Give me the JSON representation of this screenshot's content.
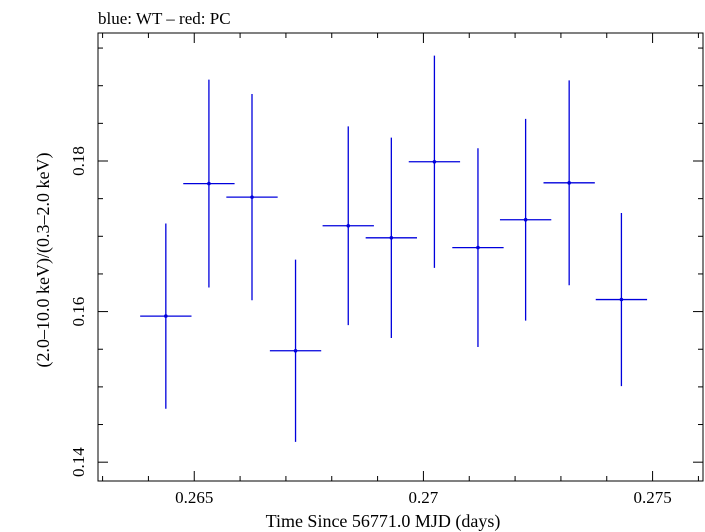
{
  "chart_data": {
    "type": "scatter",
    "title": "blue: WT – red: PC",
    "xlabel": "Time Since 56771.0 MJD (days)",
    "ylabel": "(2.0–10.0 keV)/(0.3–2.0 keV)",
    "xlim": [
      0.2629,
      0.2761
    ],
    "ylim": [
      0.1375,
      0.197
    ],
    "x_ticks": [
      0.265,
      0.27,
      0.275
    ],
    "x_tick_labels": [
      "0.265",
      "0.27",
      "0.275"
    ],
    "y_ticks": [
      0.14,
      0.16,
      0.18
    ],
    "y_tick_labels": [
      "0.14",
      "0.16",
      "0.18"
    ],
    "grid": false,
    "series": [
      {
        "color": "#0000dd",
        "points": [
          {
            "x": 0.26438,
            "y": 0.1594,
            "xerr": 0.00056,
            "yerr": 0.0123
          },
          {
            "x": 0.26532,
            "y": 0.177,
            "xerr": 0.00056,
            "yerr": 0.0138
          },
          {
            "x": 0.26626,
            "y": 0.1752,
            "xerr": 0.00056,
            "yerr": 0.0137
          },
          {
            "x": 0.26721,
            "y": 0.1548,
            "xerr": 0.00056,
            "yerr": 0.0121
          },
          {
            "x": 0.26836,
            "y": 0.1714,
            "xerr": 0.00056,
            "yerr": 0.0132
          },
          {
            "x": 0.2693,
            "y": 0.1698,
            "xerr": 0.00056,
            "yerr": 0.0133
          },
          {
            "x": 0.27024,
            "y": 0.1799,
            "xerr": 0.00056,
            "yerr": 0.0141
          },
          {
            "x": 0.27119,
            "y": 0.1685,
            "xerr": 0.00056,
            "yerr": 0.0132
          },
          {
            "x": 0.27223,
            "y": 0.1722,
            "xerr": 0.00056,
            "yerr": 0.0134
          },
          {
            "x": 0.27318,
            "y": 0.1771,
            "xerr": 0.00056,
            "yerr": 0.0136
          },
          {
            "x": 0.27432,
            "y": 0.1616,
            "xerr": 0.00056,
            "yerr": 0.0115
          }
        ]
      }
    ]
  }
}
